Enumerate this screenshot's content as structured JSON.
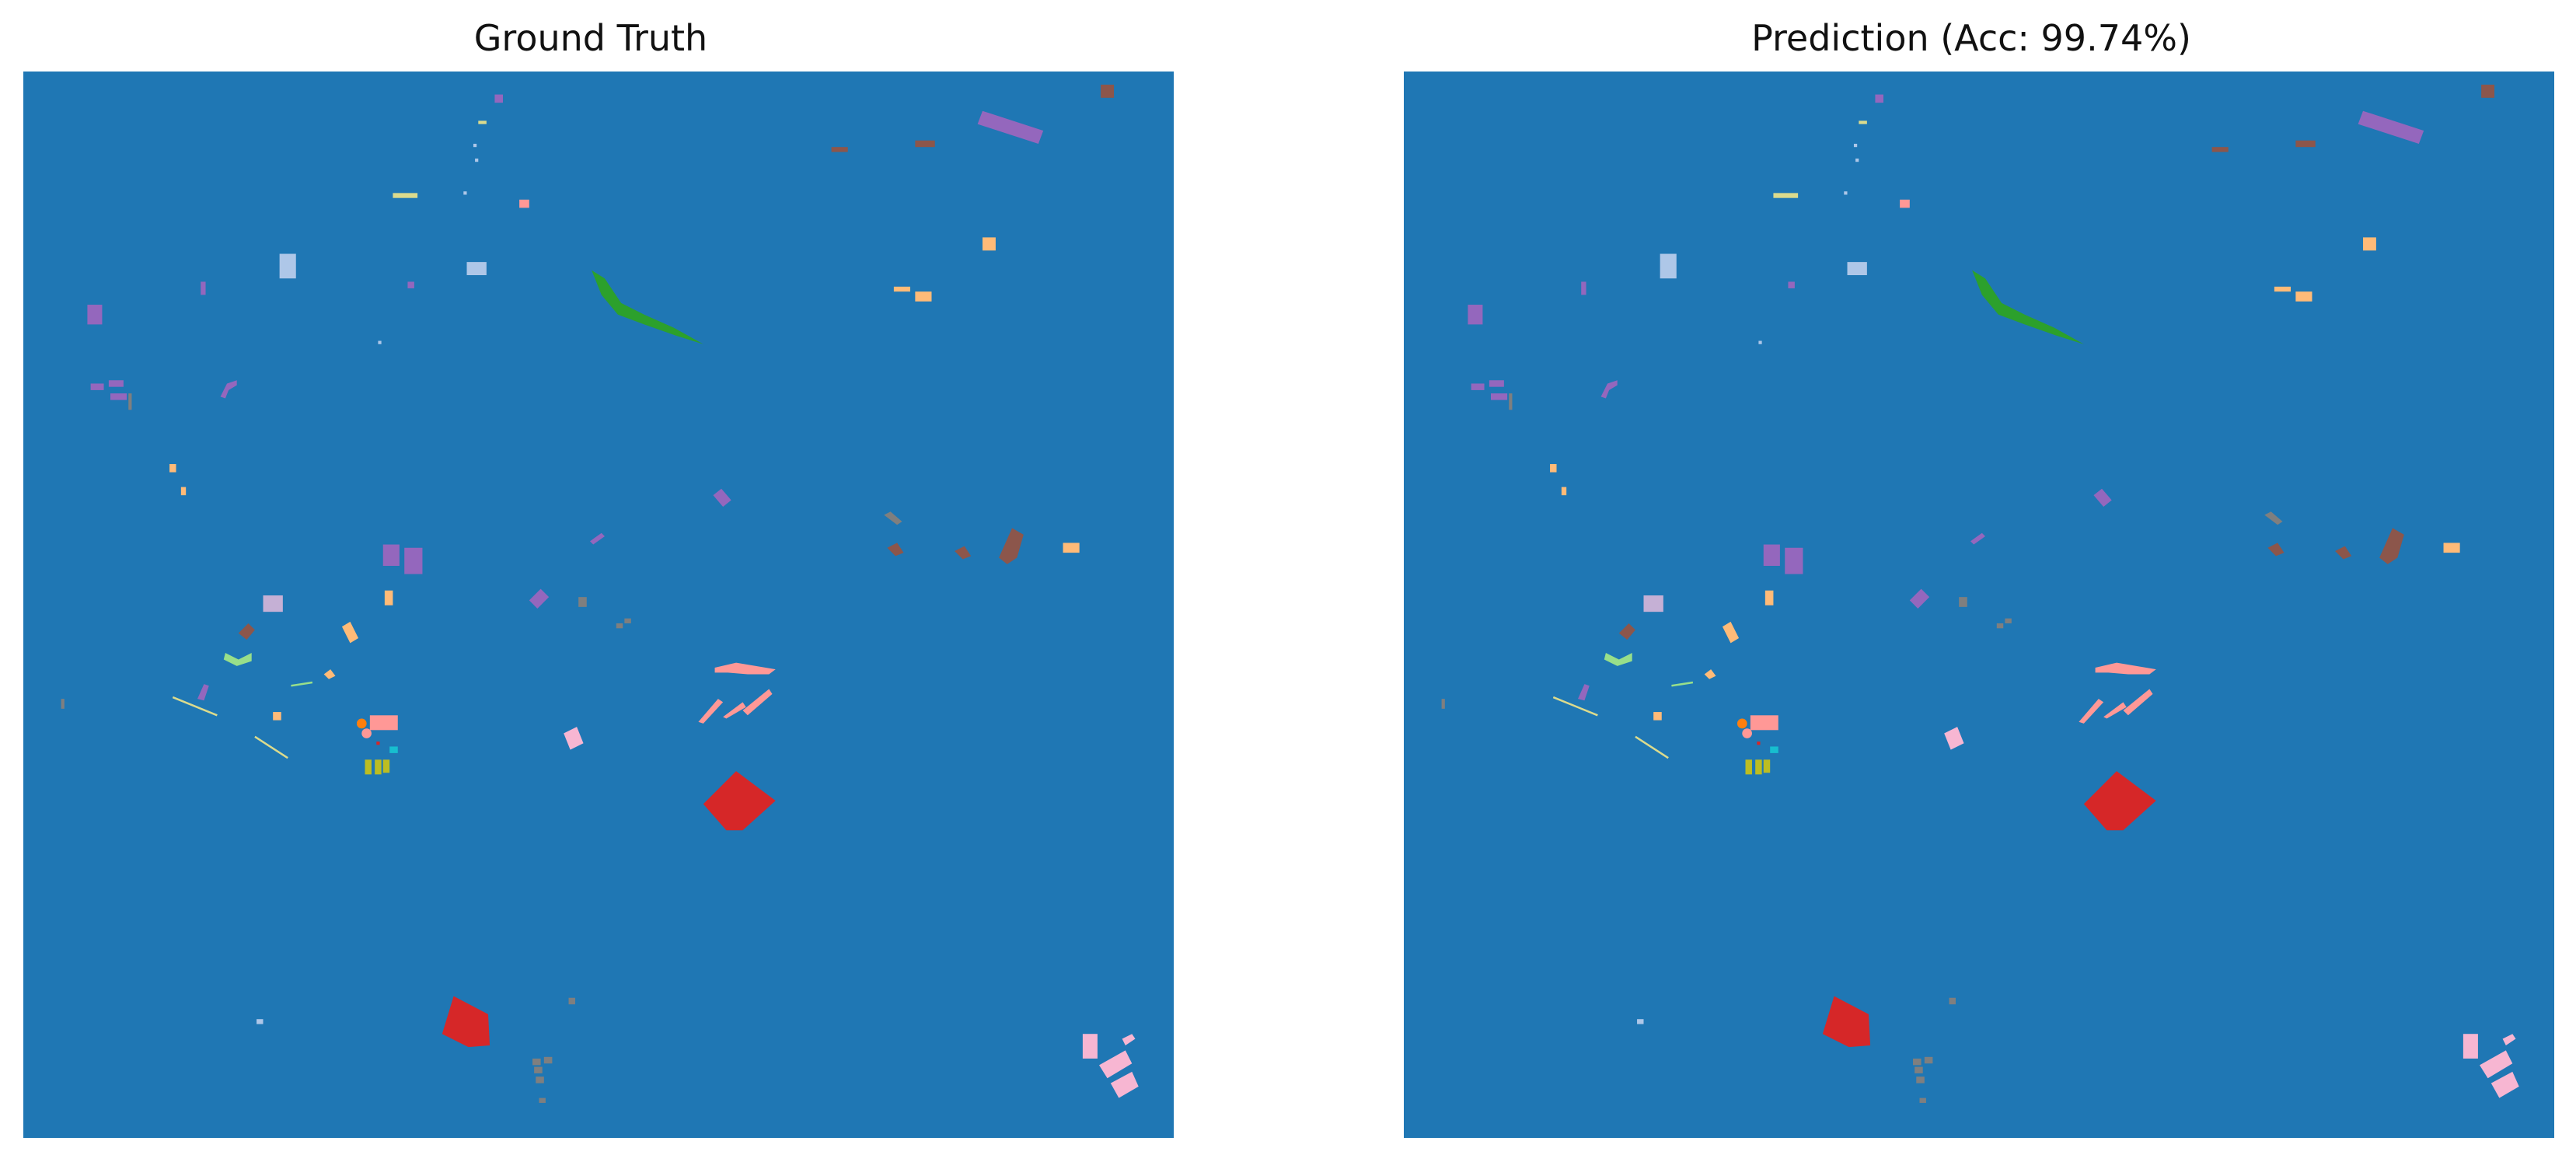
{
  "figure": {
    "panels": [
      {
        "title": "Ground Truth"
      },
      {
        "title": "Prediction (Acc: 99.74%)"
      }
    ]
  },
  "colors": {
    "background_class": "#1f77b4",
    "orange": "#ff7f0e",
    "light_orange": "#ffbb78",
    "green": "#2ca02c",
    "light_green": "#98df8a",
    "red": "#d62728",
    "light_red": "#ff9896",
    "purple": "#9467bd",
    "light_purple": "#c5b0d5",
    "brown": "#8c564b",
    "pink": "#f7b6d2",
    "gray": "#7f7f7f",
    "olive": "#bcbd22",
    "cyan": "#17becf",
    "light_blue": "#aec7e8",
    "light_yellow": "#dbdb8d"
  }
}
